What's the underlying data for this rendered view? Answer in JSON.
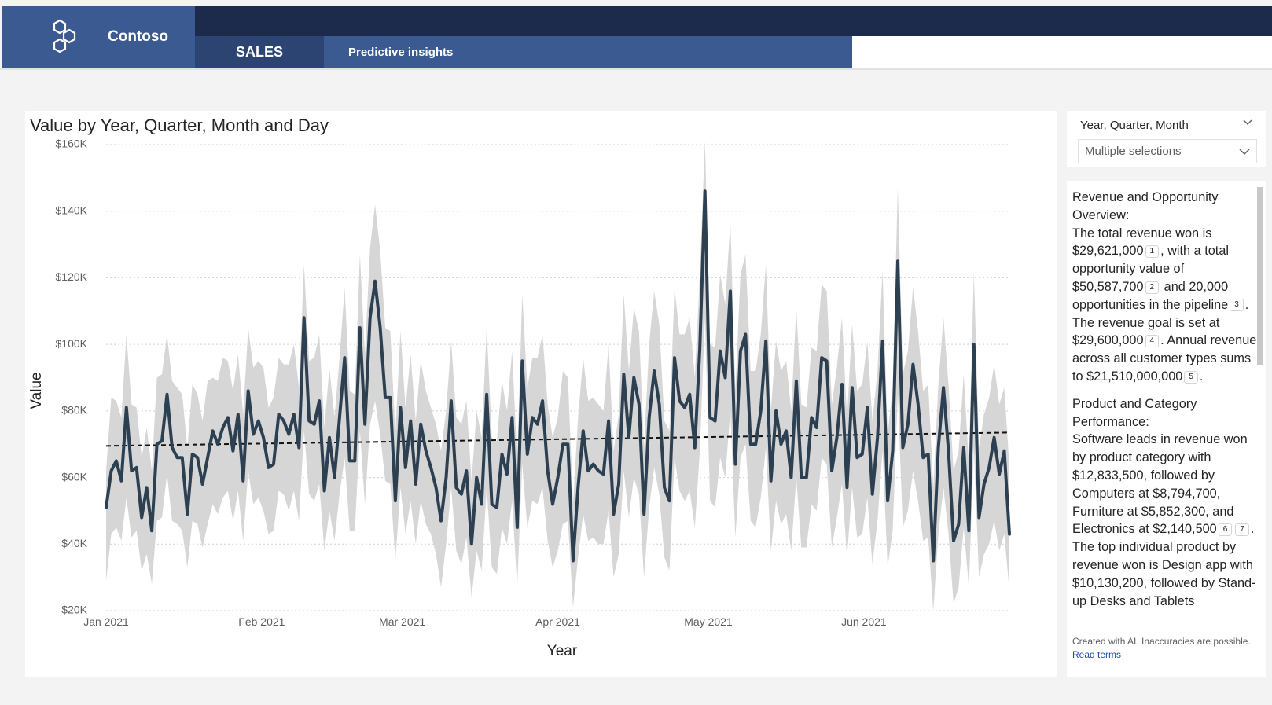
{
  "brand": {
    "name": "Contoso"
  },
  "nav": {
    "tabs": [
      {
        "label": "SALES"
      },
      {
        "label": "Predictive insights"
      }
    ]
  },
  "slicer": {
    "title": "Year, Quarter, Month",
    "value": "Multiple selections"
  },
  "narrative": {
    "sections": [
      {
        "heading": "Revenue and Opportunity Overview:",
        "parts": [
          {
            "text": "The total revenue won is $29,621,000"
          },
          {
            "cite": "1"
          },
          {
            "text": ", with a total opportunity value of $50,587,700"
          },
          {
            "cite": "2"
          },
          {
            "text": " and 20,000 opportunities in the pipeline"
          },
          {
            "cite": "3"
          },
          {
            "text": ". The revenue goal is set at $29,600,000"
          },
          {
            "cite": "4"
          },
          {
            "text": ". Annual revenue across all customer types sums to $21,510,000,000"
          },
          {
            "cite": "5"
          },
          {
            "text": "."
          }
        ]
      },
      {
        "heading": "Product and Category Performance:",
        "parts": [
          {
            "text": "Software leads in revenue won by product category with $12,833,500, followed by Computers at $8,794,700, Furniture at $5,852,300, and Electronics at $2,140,500"
          },
          {
            "cite": "6"
          },
          {
            "cite": "7"
          },
          {
            "text": ". The top individual product by revenue won is Design app with $10,130,200, followed by Stand-up Desks and Tablets"
          }
        ]
      }
    ],
    "disclaimer": "Created with AI. Inaccuracies are possible.",
    "read_terms": "Read terms"
  },
  "colors": {
    "line": "#2d4052",
    "band": "#d6d6d6",
    "nav": "#3c5a92",
    "nav_dark": "#1c2b4b"
  },
  "chart_data": {
    "type": "line",
    "title": "Value by Year, Quarter, Month and Day",
    "xlabel": "Year",
    "ylabel": "Value",
    "x_start": "2021-01-01",
    "x_end": "2021-06-30",
    "x_ticks": [
      {
        "date": "2021-01-01",
        "label": "Jan 2021"
      },
      {
        "date": "2021-02-01",
        "label": "Feb 2021"
      },
      {
        "date": "2021-03-01",
        "label": "Mar 2021"
      },
      {
        "date": "2021-04-01",
        "label": "Apr 2021"
      },
      {
        "date": "2021-05-01",
        "label": "May 2021"
      },
      {
        "date": "2021-06-01",
        "label": "Jun 2021"
      }
    ],
    "ylim": [
      20000,
      160000
    ],
    "y_ticks": [
      {
        "value": 20000,
        "label": "$20K"
      },
      {
        "value": 40000,
        "label": "$40K"
      },
      {
        "value": 60000,
        "label": "$60K"
      },
      {
        "value": 80000,
        "label": "$80K"
      },
      {
        "value": 100000,
        "label": "$100K"
      },
      {
        "value": 120000,
        "label": "$120K"
      },
      {
        "value": 140000,
        "label": "$140K"
      },
      {
        "value": 160000,
        "label": "$160K"
      }
    ],
    "grid": true,
    "trend": {
      "start": 69500,
      "end": 73500
    },
    "series": [
      {
        "values": [
          51000,
          62000,
          65000,
          59000,
          81000,
          62000,
          63000,
          48000,
          57000,
          44000,
          70000,
          71000,
          85000,
          69000,
          66000,
          66000,
          49000,
          67000,
          66000,
          58000,
          66000,
          74000,
          70000,
          75000,
          78000,
          68000,
          79000,
          59000,
          86000,
          73000,
          77000,
          72000,
          63000,
          64000,
          79000,
          77000,
          73000,
          79000,
          69000,
          108000,
          77000,
          76000,
          83000,
          56000,
          72000,
          60000,
          78000,
          96000,
          65000,
          65000,
          105000,
          76000,
          108000,
          119000,
          105000,
          84000,
          84000,
          53000,
          81000,
          63000,
          77000,
          58000,
          76000,
          68000,
          63000,
          57000,
          47000,
          60000,
          83000,
          57000,
          55000,
          62000,
          40000,
          60000,
          52000,
          85000,
          52000,
          51000,
          67000,
          61000,
          78000,
          45000,
          95000,
          67000,
          78000,
          76000,
          83000,
          62000,
          52000,
          60000,
          70000,
          70000,
          35000,
          57000,
          74000,
          62000,
          64000,
          62000,
          61000,
          77000,
          49000,
          58000,
          91000,
          72000,
          90000,
          82000,
          49000,
          78000,
          92000,
          82000,
          57000,
          53000,
          96000,
          83000,
          81000,
          85000,
          69000,
          99000,
          146000,
          78000,
          77000,
          98000,
          90000,
          116000,
          64000,
          98000,
          103000,
          70000,
          70000,
          80000,
          101000,
          59000,
          80000,
          70000,
          74000,
          60000,
          89000,
          60000,
          60000,
          78000,
          75000,
          96000,
          95000,
          62000,
          72000,
          88000,
          57000,
          87000,
          66000,
          67000,
          81000,
          55000,
          72000,
          101000,
          53000,
          68000,
          125000,
          69000,
          76000,
          94000,
          82000,
          66000,
          67000,
          35000,
          69000,
          87000,
          68000,
          41000,
          46000,
          69000,
          44000,
          100000,
          48000,
          58000,
          63000,
          72000,
          61000,
          68000,
          43000
        ],
        "lower": [
          29000,
          43000,
          45000,
          41000,
          54000,
          42000,
          44000,
          32000,
          37000,
          28000,
          47000,
          48000,
          61000,
          47000,
          46000,
          44000,
          33000,
          47000,
          46000,
          39000,
          46000,
          52000,
          49000,
          54000,
          56000,
          47000,
          56000,
          41000,
          62000,
          52000,
          54000,
          50000,
          43000,
          44000,
          56000,
          55000,
          50000,
          56000,
          47000,
          74000,
          55000,
          53000,
          58000,
          38000,
          50000,
          41000,
          55000,
          66000,
          44000,
          44000,
          74000,
          52000,
          76000,
          83000,
          73000,
          59000,
          58000,
          35000,
          57000,
          43000,
          53000,
          40000,
          53000,
          46000,
          43000,
          37000,
          27000,
          40000,
          57000,
          38000,
          34000,
          42000,
          24000,
          38000,
          32000,
          57000,
          33000,
          31000,
          45000,
          40000,
          53000,
          27000,
          64000,
          45000,
          53000,
          52000,
          57000,
          41000,
          33000,
          38000,
          46000,
          47000,
          21000,
          36000,
          49000,
          41000,
          42000,
          40000,
          40000,
          50000,
          30000,
          37000,
          62000,
          48000,
          60000,
          55000,
          30000,
          51000,
          63000,
          55000,
          36000,
          32000,
          66000,
          56000,
          53000,
          56000,
          45000,
          68000,
          108000,
          53000,
          51000,
          66000,
          60000,
          80000,
          42000,
          66000,
          70000,
          47000,
          45000,
          54000,
          69000,
          38000,
          53000,
          46000,
          49000,
          38000,
          60000,
          39000,
          39000,
          52000,
          50000,
          66000,
          64000,
          39000,
          48000,
          58000,
          36000,
          57000,
          42000,
          43000,
          54000,
          34000,
          47000,
          68000,
          33000,
          44000,
          85000,
          45000,
          50000,
          62000,
          53000,
          41000,
          42000,
          20000,
          43000,
          57000,
          43000,
          22000,
          27000,
          45000,
          27000,
          69000,
          30000,
          37000,
          40000,
          47000,
          38000,
          43000,
          26000
        ],
        "upper": [
          62000,
          84000,
          83000,
          78000,
          103000,
          82000,
          81000,
          66000,
          75000,
          62000,
          90000,
          91000,
          103000,
          89000,
          87000,
          85000,
          69000,
          88000,
          85000,
          77000,
          89000,
          90000,
          89000,
          96000,
          95000,
          86000,
          97000,
          79000,
          105000,
          93000,
          95000,
          93000,
          81000,
          84000,
          96000,
          94000,
          94000,
          100000,
          87000,
          124000,
          95000,
          96000,
          103000,
          75000,
          93000,
          78000,
          96000,
          117000,
          86000,
          85000,
          127000,
          97000,
          129000,
          142000,
          128000,
          105000,
          104000,
          73000,
          104000,
          81000,
          97000,
          77000,
          95000,
          86000,
          81000,
          76000,
          68000,
          80000,
          101000,
          78000,
          76000,
          83000,
          59000,
          80000,
          72000,
          105000,
          72000,
          71000,
          89000,
          80000,
          98000,
          65000,
          115000,
          87000,
          96000,
          96000,
          103000,
          82000,
          72000,
          78000,
          92000,
          90000,
          52000,
          78000,
          96000,
          83000,
          84000,
          82000,
          80000,
          100000,
          68000,
          79000,
          115000,
          92000,
          111000,
          104000,
          69000,
          100000,
          116000,
          106000,
          77000,
          74000,
          117000,
          103000,
          103000,
          108000,
          90000,
          121000,
          161000,
          100000,
          99000,
          121000,
          112000,
          137000,
          86000,
          121000,
          127000,
          92000,
          92000,
          103000,
          124000,
          80000,
          101000,
          92000,
          95000,
          80000,
          111000,
          82000,
          81000,
          99000,
          98000,
          118000,
          116000,
          82000,
          93000,
          108000,
          78000,
          106000,
          86000,
          88000,
          101000,
          77000,
          92000,
          122000,
          73000,
          87000,
          147000,
          91000,
          98000,
          117000,
          104000,
          86000,
          88000,
          57000,
          88000,
          108000,
          88000,
          62000,
          68000,
          91000,
          64000,
          122000,
          69000,
          79000,
          84000,
          94000,
          82000,
          87000,
          63000
        ]
      }
    ]
  }
}
